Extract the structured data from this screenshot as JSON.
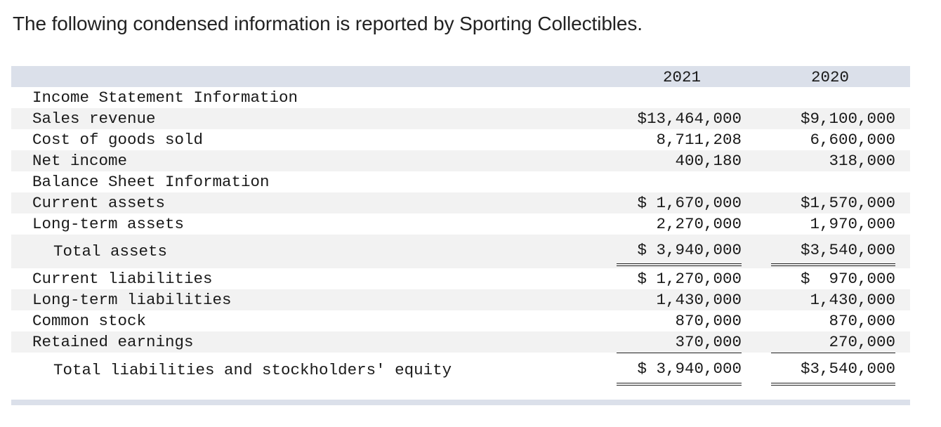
{
  "intro": "The following condensed information is reported by Sporting Collectibles.",
  "years": [
    "2021",
    "2020"
  ],
  "rows": [
    {
      "label": "Income Statement Information",
      "v2021": "",
      "v2020": ""
    },
    {
      "label": "Sales revenue",
      "v2021": "$13,464,000",
      "v2020": "$9,100,000"
    },
    {
      "label": "Cost of goods sold",
      "v2021": "8,711,208",
      "v2020": "6,600,000"
    },
    {
      "label": "Net income",
      "v2021": "400,180",
      "v2020": "318,000"
    },
    {
      "label": "Balance Sheet Information",
      "v2021": "",
      "v2020": ""
    },
    {
      "label": "Current assets",
      "v2021": "$ 1,670,000",
      "v2020": "$1,570,000"
    },
    {
      "label": "Long-term assets",
      "v2021": "2,270,000",
      "v2020": "1,970,000"
    },
    {
      "label": "Total assets",
      "v2021": "$ 3,940,000",
      "v2020": "$3,540,000"
    },
    {
      "label": "Current liabilities",
      "v2021": "$ 1,270,000",
      "v2020": "$  970,000"
    },
    {
      "label": "Long-term liabilities",
      "v2021": "1,430,000",
      "v2020": "1,430,000"
    },
    {
      "label": "Common stock",
      "v2021": "870,000",
      "v2020": "870,000"
    },
    {
      "label": "Retained earnings",
      "v2021": "370,000",
      "v2020": "270,000"
    },
    {
      "label": "Total liabilities and stockholders' equity",
      "v2021": "$ 3,940,000",
      "v2020": "$3,540,000"
    }
  ]
}
